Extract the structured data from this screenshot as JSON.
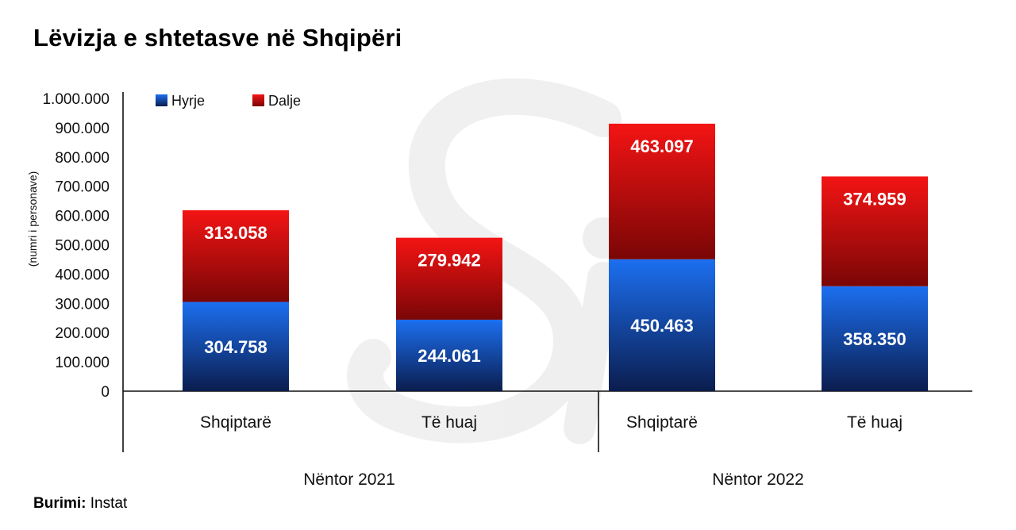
{
  "title": "Lëvizja e shtetasve në Shqipëri",
  "source": {
    "label": "Burimi:",
    "value": "Instat"
  },
  "chart_data": {
    "type": "bar",
    "stacked": true,
    "ylabel": "(numri i personave)",
    "ylim": [
      0,
      1000000
    ],
    "yticks": [
      "0",
      "100.000",
      "200.000",
      "300.000",
      "400.000",
      "500.000",
      "600.000",
      "700.000",
      "800.000",
      "900.000",
      "1.000.000"
    ],
    "groups": [
      "Nëntor 2021",
      "Nëntor 2022"
    ],
    "categories": [
      "Shqiptarë",
      "Të huaj",
      "Shqiptarë",
      "Të huaj"
    ],
    "series": [
      {
        "name": "Hyrje",
        "color": "#1a5fd6",
        "values": [
          304758,
          244061,
          450463,
          358350
        ],
        "labels": [
          "304.758",
          "244.061",
          "450.463",
          "358.350"
        ]
      },
      {
        "name": "Dalje",
        "color": "#e01010",
        "values": [
          313058,
          279942,
          463097,
          374959
        ],
        "labels": [
          "313.058",
          "279.942",
          "463.097",
          "374.959"
        ]
      }
    ],
    "legend": "top-left",
    "grid": false
  }
}
